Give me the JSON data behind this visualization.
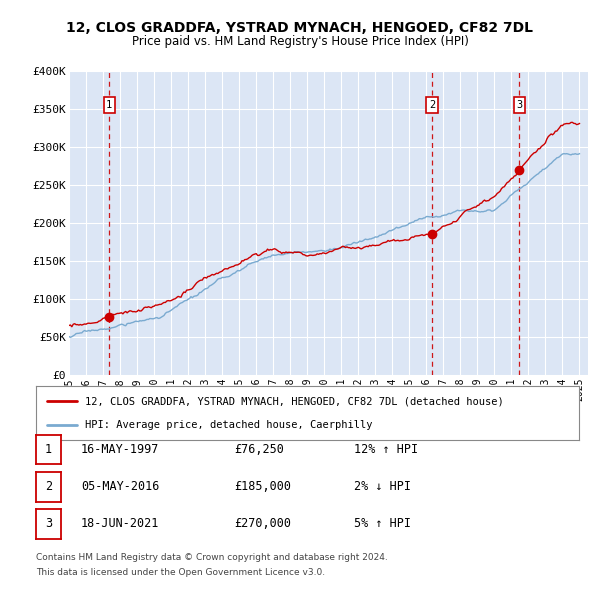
{
  "title": "12, CLOS GRADDFA, YSTRAD MYNACH, HENGOED, CF82 7DL",
  "subtitle": "Price paid vs. HM Land Registry's House Price Index (HPI)",
  "ylim": [
    0,
    400000
  ],
  "yticks": [
    0,
    50000,
    100000,
    150000,
    200000,
    250000,
    300000,
    350000,
    400000
  ],
  "ytick_labels": [
    "£0",
    "£50K",
    "£100K",
    "£150K",
    "£200K",
    "£250K",
    "£300K",
    "£350K",
    "£400K"
  ],
  "xlim_start": 1995.0,
  "xlim_end": 2025.5,
  "transactions": [
    {
      "num": 1,
      "date": "16-MAY-1997",
      "price": 76250,
      "year": 1997.37
    },
    {
      "num": 2,
      "date": "05-MAY-2016",
      "price": 185000,
      "year": 2016.34
    },
    {
      "num": 3,
      "date": "18-JUN-2021",
      "price": 270000,
      "year": 2021.46
    }
  ],
  "legend_line1": "12, CLOS GRADDFA, YSTRAD MYNACH, HENGOED, CF82 7DL (detached house)",
  "legend_line2": "HPI: Average price, detached house, Caerphilly",
  "footnote1": "Contains HM Land Registry data © Crown copyright and database right 2024.",
  "footnote2": "This data is licensed under the Open Government Licence v3.0.",
  "table_rows": [
    {
      "num": 1,
      "date": "16-MAY-1997",
      "price": "£76,250",
      "hpi": "12% ↑ HPI"
    },
    {
      "num": 2,
      "date": "05-MAY-2016",
      "price": "£185,000",
      "hpi": "2% ↓ HPI"
    },
    {
      "num": 3,
      "date": "18-JUN-2021",
      "price": "£270,000",
      "hpi": "5% ↑ HPI"
    }
  ],
  "bg_color": "#dce6f5",
  "red_color": "#cc0000",
  "blue_color": "#7aaad0"
}
